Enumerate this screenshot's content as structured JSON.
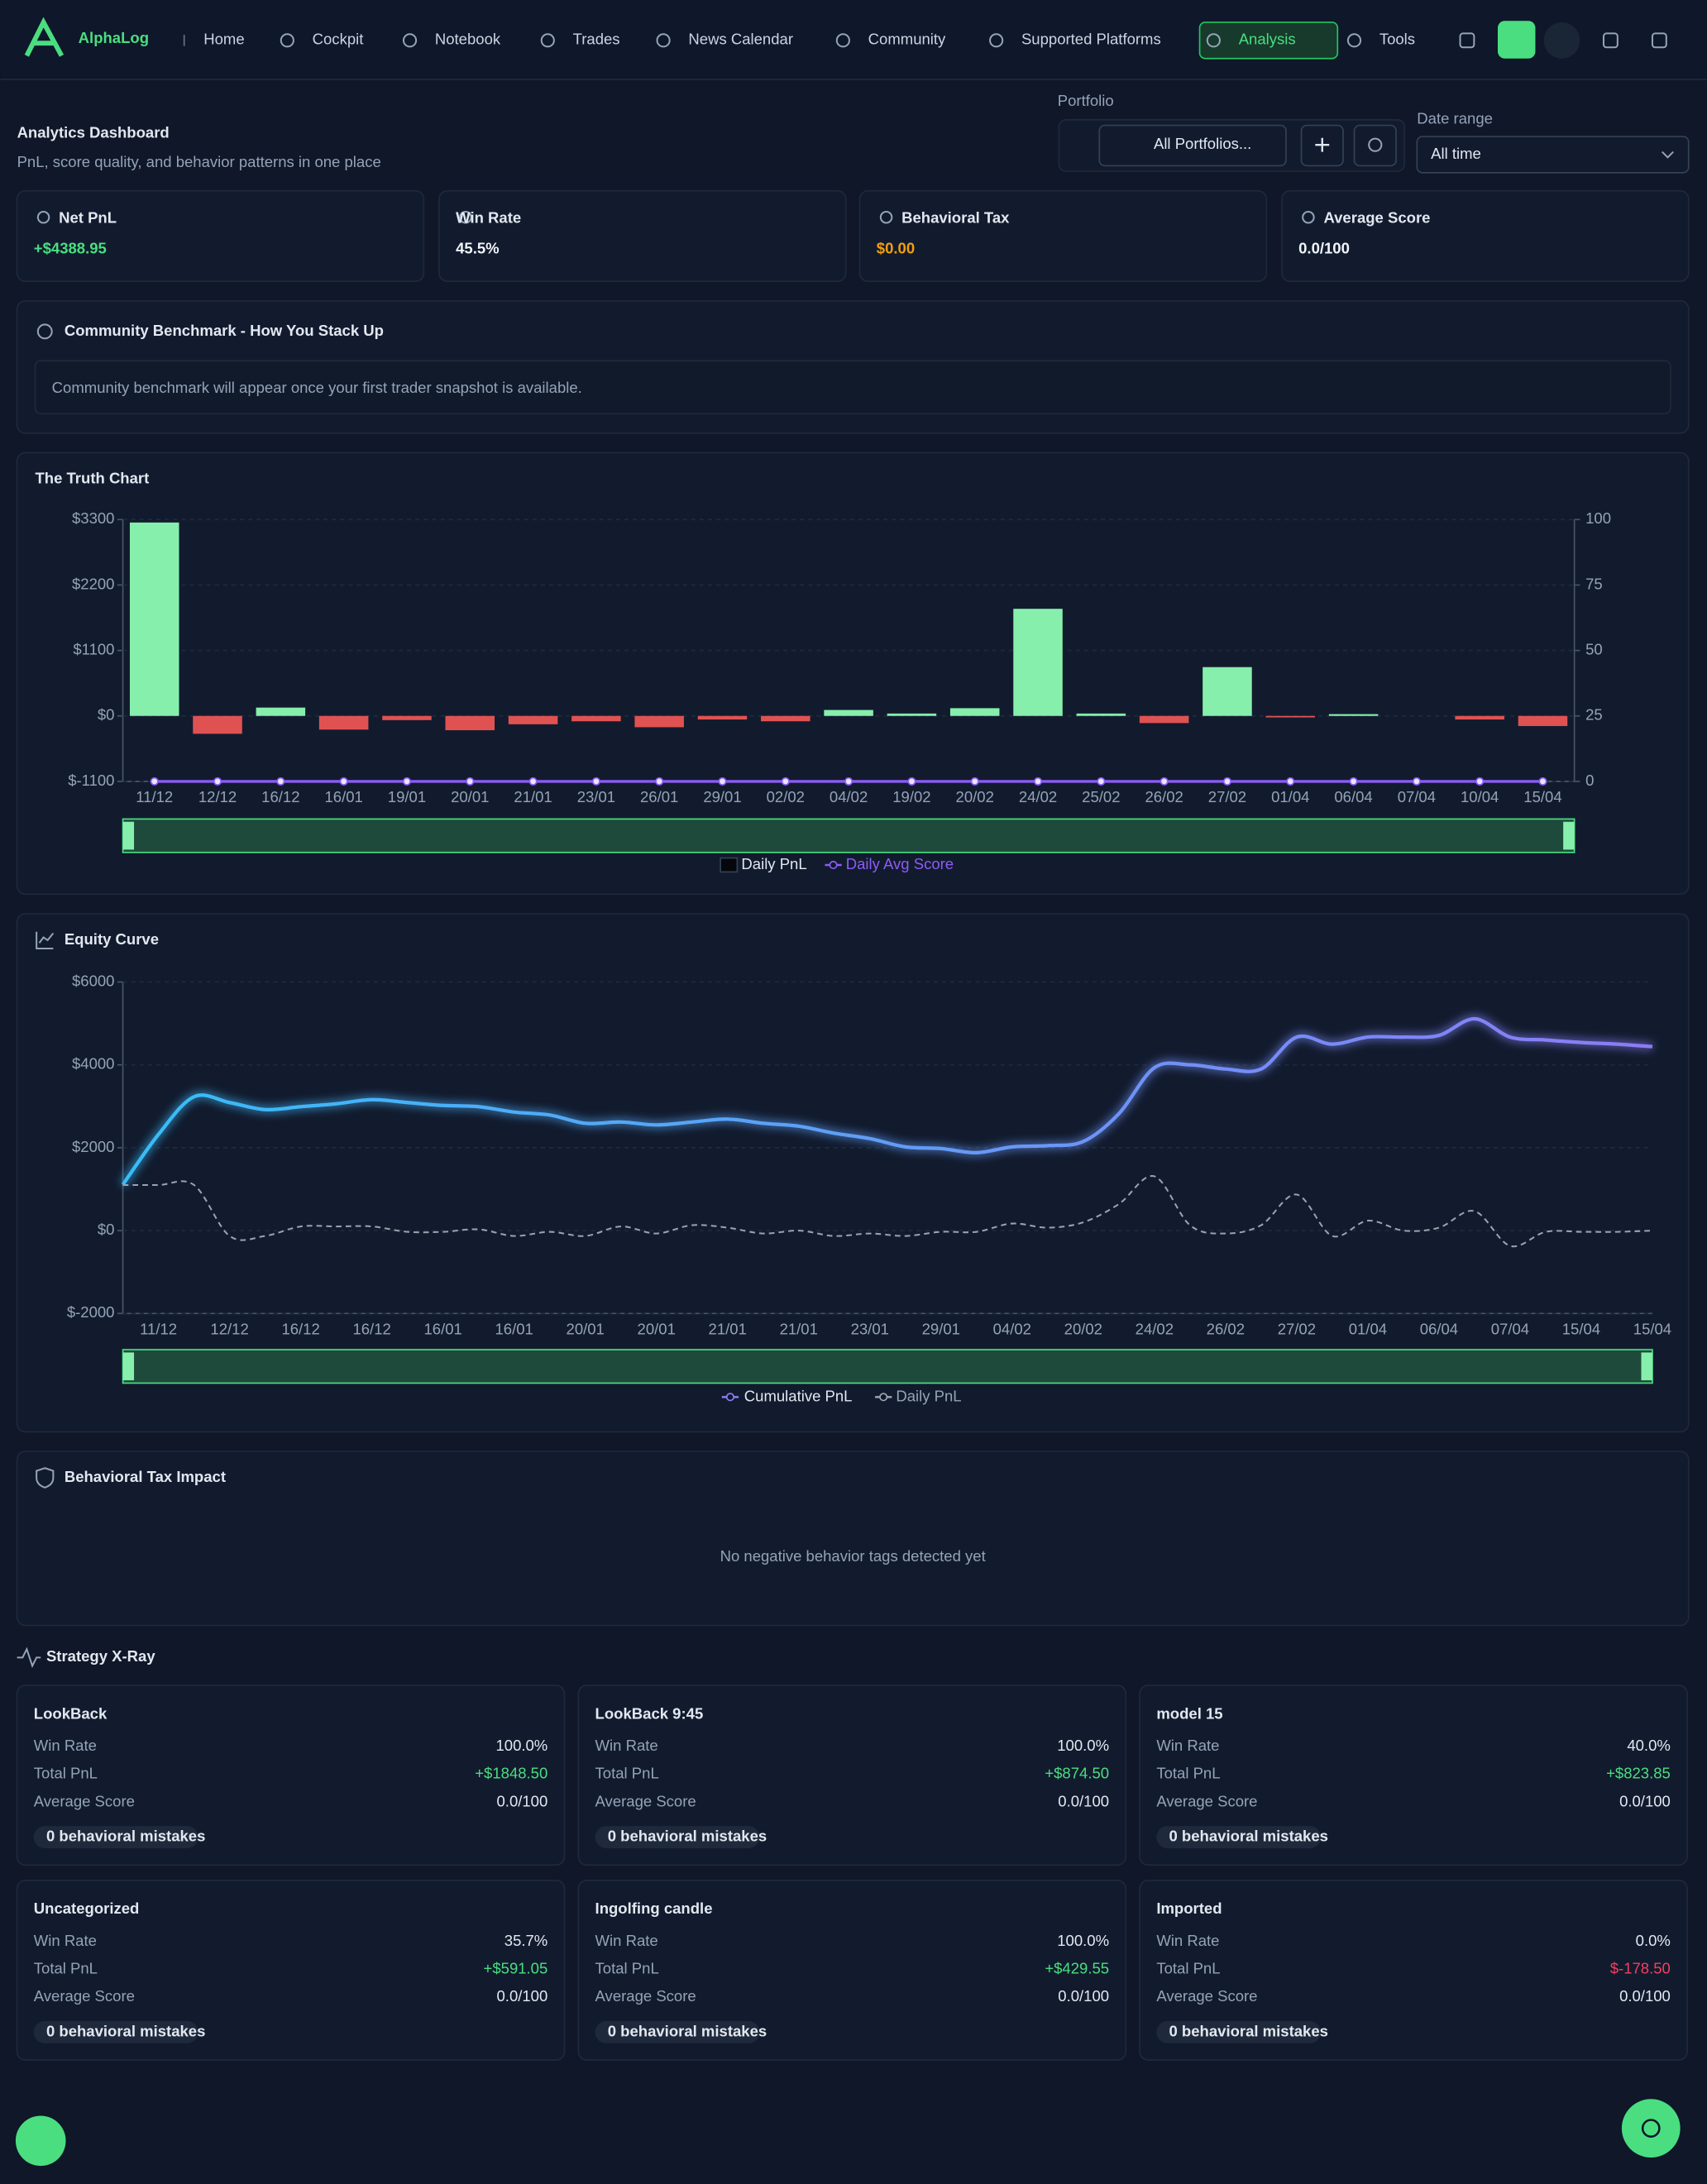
{
  "nav": {
    "brand": "AlphaLog",
    "items": [
      "Home",
      "Cockpit",
      "Notebook",
      "Trades",
      "News Calendar",
      "Community",
      "Supported Platforms",
      "Analysis",
      "Tools"
    ]
  },
  "header": {
    "title": "Analytics Dashboard",
    "subtitle": "PnL, score quality, and behavior patterns in one place",
    "portfolio_label": "Portfolio",
    "portfolio_value": "All Portfolios...",
    "date_label": "Date range",
    "date_value": "All time"
  },
  "kpis": [
    {
      "label": "Net PnL",
      "value": "+$4388.95",
      "color": "#4ade80"
    },
    {
      "label": "Win Rate",
      "value": "45.5%",
      "color": "#f1f5f9"
    },
    {
      "label": "Behavioral Tax",
      "value": "$0.00",
      "color": "#f59e0b"
    },
    {
      "label": "Average Score",
      "value": "0.0/100",
      "color": "#f1f5f9"
    }
  ],
  "benchmark": {
    "title": "Community Benchmark - How You Stack Up",
    "message": "Community benchmark will appear once your first trader snapshot is available."
  },
  "chart_data": [
    {
      "type": "bar",
      "title": "The Truth Chart",
      "categories": [
        "11/12",
        "12/12",
        "16/12",
        "16/01",
        "19/01",
        "20/01",
        "21/01",
        "23/01",
        "26/01",
        "29/01",
        "02/02",
        "04/02",
        "19/02",
        "20/02",
        "24/02",
        "25/02",
        "26/02",
        "27/02",
        "01/04",
        "06/04",
        "07/04",
        "10/04",
        "15/04"
      ],
      "series": [
        {
          "name": "Daily PnL",
          "color": "#86efac",
          "negative_color": "#e05252",
          "values": [
            3250,
            -300,
            140,
            -230,
            -70,
            -240,
            -140,
            -90,
            -190,
            -60,
            -90,
            100,
            40,
            130,
            1800,
            40,
            -120,
            820,
            -25,
            30,
            0,
            -60,
            -170
          ]
        },
        {
          "name": "Daily Avg Score",
          "type": "line",
          "axis": "y2",
          "color": "#8b5cf6",
          "values": [
            0,
            0,
            0,
            0,
            0,
            0,
            0,
            0,
            0,
            0,
            0,
            0,
            0,
            0,
            0,
            0,
            0,
            0,
            0,
            0,
            0,
            0,
            0
          ]
        }
      ],
      "ylim": [
        -1100,
        3300
      ],
      "yticks": [
        {
          "value": -1100,
          "label": "$-1100"
        },
        {
          "value": 0,
          "label": "$0"
        },
        {
          "value": 1100,
          "label": "$1100"
        },
        {
          "value": 2200,
          "label": "$2200"
        },
        {
          "value": 3300,
          "label": "$3300"
        }
      ],
      "y2lim": [
        0,
        100
      ],
      "y2ticks": [
        0,
        25,
        50,
        75,
        100
      ],
      "grid": true
    },
    {
      "type": "line",
      "title": "Equity Curve",
      "categories": [
        null,
        "11/12",
        null,
        "12/12",
        null,
        "16/12",
        null,
        "16/12",
        null,
        "16/01",
        null,
        "16/01",
        null,
        "20/01",
        null,
        "20/01",
        null,
        "21/01",
        null,
        "21/01",
        null,
        "23/01",
        null,
        "29/01",
        null,
        "04/02",
        null,
        "20/02",
        null,
        "24/02",
        null,
        "26/02",
        null,
        "27/02",
        null,
        "01/04",
        null,
        "06/04",
        null,
        "07/04",
        null,
        "15/04",
        null,
        "15/04"
      ],
      "series": [
        {
          "name": "Cumulative PnL",
          "color": "#8b7cf6",
          "values": [
            1110,
            2320,
            3230,
            3090,
            2920,
            2990,
            3060,
            3160,
            3090,
            3020,
            2990,
            2860,
            2790,
            2590,
            2620,
            2550,
            2620,
            2690,
            2590,
            2520,
            2350,
            2220,
            2020,
            1980,
            1880,
            2020,
            2050,
            2150,
            2820,
            3930,
            4000,
            3900,
            3900,
            4670,
            4500,
            4670,
            4670,
            4710,
            5110,
            4670,
            4600,
            4540,
            4500,
            4440
          ]
        },
        {
          "name": "Daily PnL",
          "color": "#9ca3af",
          "dashed": true,
          "values": [
            1100,
            1100,
            1100,
            -130,
            -130,
            100,
            100,
            100,
            -30,
            -30,
            30,
            -130,
            -30,
            -130,
            100,
            -70,
            130,
            70,
            -70,
            0,
            -130,
            -70,
            -130,
            -30,
            -30,
            170,
            70,
            200,
            640,
            1310,
            130,
            -70,
            130,
            870,
            -130,
            240,
            0,
            70,
            470,
            -370,
            -30,
            -30,
            -30,
            0
          ]
        }
      ],
      "ylim": [
        -2000,
        6000
      ],
      "yticks": [
        {
          "value": -2000,
          "label": "$-2000"
        },
        {
          "value": 0,
          "label": "$0"
        },
        {
          "value": 2000,
          "label": "$2000"
        },
        {
          "value": 4000,
          "label": "$4000"
        },
        {
          "value": 6000,
          "label": "$6000"
        }
      ],
      "grid": true
    }
  ],
  "behavioral_tax": {
    "title": "Behavioral Tax Impact",
    "message": "No negative behavior tags detected yet"
  },
  "strategy_xray": {
    "title": "Strategy X-Ray",
    "field_labels": [
      "Win Rate",
      "Total PnL",
      "Average Score"
    ],
    "strategies": [
      {
        "name": "LookBack",
        "win_rate": "100.0%",
        "total_pnl": "+$1848.50",
        "average_score": "0.0/100",
        "mistakes": "0 behavioral mistakes"
      },
      {
        "name": "LookBack 9:45",
        "win_rate": "100.0%",
        "total_pnl": "+$874.50",
        "average_score": "0.0/100",
        "mistakes": "0 behavioral mistakes"
      },
      {
        "name": "model 15",
        "win_rate": "40.0%",
        "total_pnl": "+$823.85",
        "average_score": "0.0/100",
        "mistakes": "0 behavioral mistakes"
      },
      {
        "name": "Uncategorized",
        "win_rate": "35.7%",
        "total_pnl": "+$591.05",
        "average_score": "0.0/100",
        "mistakes": "0 behavioral mistakes"
      },
      {
        "name": "Ingolfing candle",
        "win_rate": "100.0%",
        "total_pnl": "+$429.55",
        "average_score": "0.0/100",
        "mistakes": "0 behavioral mistakes"
      },
      {
        "name": "Imported",
        "win_rate": "0.0%",
        "total_pnl": "$-178.50",
        "average_score": "0.0/100",
        "mistakes": "0 behavioral mistakes"
      }
    ]
  }
}
